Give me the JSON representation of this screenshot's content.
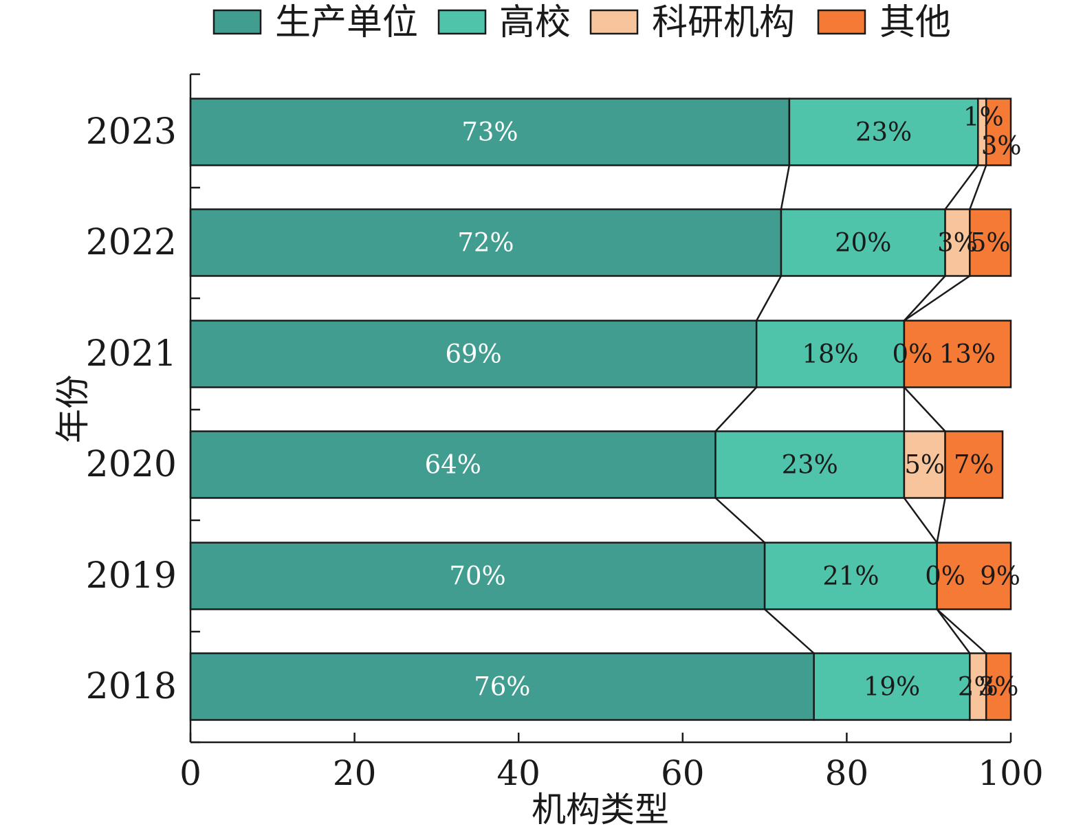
{
  "chart_data": {
    "type": "bar",
    "orientation": "horizontal",
    "stacked": true,
    "title": "",
    "xlabel": "机构类型",
    "ylabel": "年份",
    "xlim": [
      0,
      100
    ],
    "x_ticks": [
      0,
      20,
      40,
      60,
      80,
      100
    ],
    "categories": [
      "2018",
      "2019",
      "2020",
      "2021",
      "2022",
      "2023"
    ],
    "series": [
      {
        "name": "生产单位",
        "color": "#409d8f",
        "values": [
          76,
          70,
          64,
          69,
          72,
          73
        ],
        "labels": [
          "76%",
          "70%",
          "64%",
          "69%",
          "72%",
          "73%"
        ]
      },
      {
        "name": "高校",
        "color": "#4fc4aa",
        "values": [
          19,
          21,
          23,
          18,
          20,
          23
        ],
        "labels": [
          "19%",
          "21%",
          "23%",
          "18%",
          "20%",
          "23%"
        ]
      },
      {
        "name": "科研机构",
        "color": "#f7c49b",
        "values": [
          2,
          0,
          5,
          0,
          3,
          1
        ],
        "labels": [
          "2%",
          "0%",
          "5%",
          "0%",
          "3%",
          "1%"
        ]
      },
      {
        "name": "其他",
        "color": "#f47a35",
        "values": [
          3,
          9,
          7,
          13,
          5,
          3
        ],
        "labels": [
          "3%",
          "9%",
          "7%",
          "13%",
          "5%",
          "3%"
        ]
      }
    ],
    "grid": false,
    "legend_position": "top",
    "connector_lines": true
  }
}
